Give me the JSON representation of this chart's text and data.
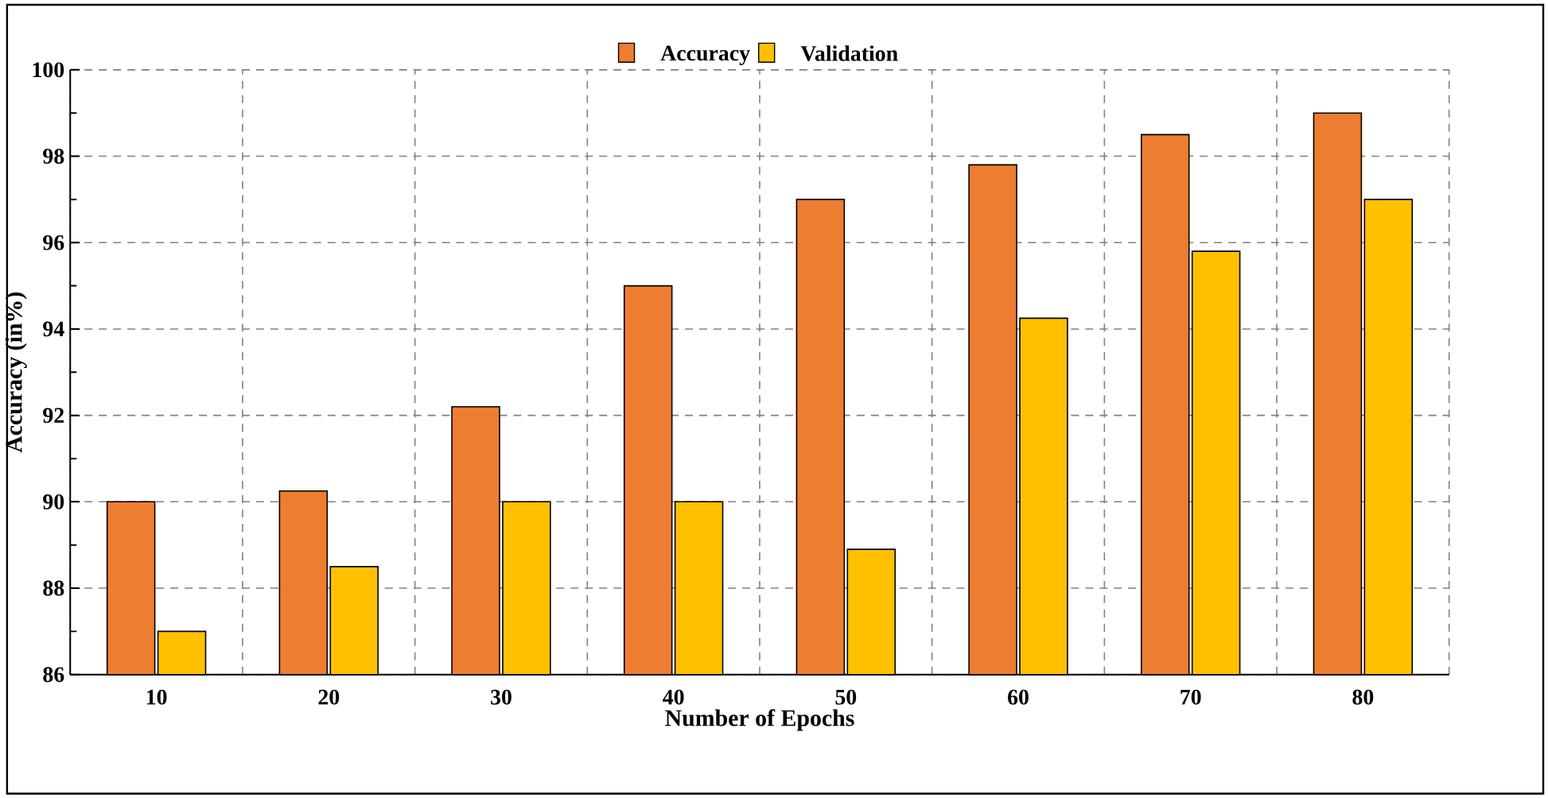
{
  "chart_data": {
    "type": "bar",
    "xlabel": "Number of Epochs",
    "ylabel": "Accuracy (in%)",
    "categories": [
      "10",
      "20",
      "30",
      "40",
      "50",
      "60",
      "70",
      "80"
    ],
    "series": [
      {
        "name": "Accuracy",
        "color": "#ed7d31",
        "values": [
          90,
          90.25,
          92.2,
          95,
          97,
          97.8,
          98.5,
          99
        ]
      },
      {
        "name": "Validation",
        "color": "#ffc000",
        "values": [
          87,
          88.5,
          90,
          90,
          88.9,
          94.25,
          95.8,
          97
        ]
      }
    ],
    "ylim": [
      86,
      100
    ],
    "yticks": [
      86,
      88,
      90,
      92,
      94,
      96,
      98,
      100
    ],
    "grid": true,
    "legend": "top"
  }
}
